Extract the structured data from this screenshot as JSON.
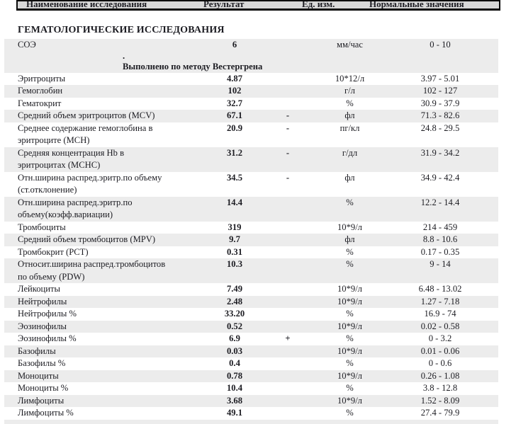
{
  "header": {
    "columns": [
      "Наименование исследования",
      "Результат",
      "Ед. изм.",
      "Нормальные значения"
    ]
  },
  "section": {
    "title": "ГЕМАТОЛОГИЧЕСКИЕ ИССЛЕДОВАНИЯ"
  },
  "soe_block": {
    "name": "СОЭ",
    "result": "6",
    "flag": "",
    "units": "мм/час",
    "range": "0 - 10",
    "dot": ".",
    "method_note": "Выполнено по методу Вестергрена"
  },
  "rows": [
    {
      "name": "Эритроциты",
      "result": "4.87",
      "flag": "",
      "units": "10*12/л",
      "range": "3.97 - 5.01"
    },
    {
      "name": "Гемоглобин",
      "result": "102",
      "flag": "",
      "units": "г/л",
      "range": "102 - 127"
    },
    {
      "name": "Гематокрит",
      "result": "32.7",
      "flag": "",
      "units": "%",
      "range": "30.9 - 37.9"
    },
    {
      "name": "Средний объем эритроцитов (MCV)",
      "result": "67.1",
      "flag": "-",
      "units": "фл",
      "range": "71.3 - 82.6"
    },
    {
      "name": "Среднее содержание гемоглобина в\nэритроците (MCH)",
      "result": "20.9",
      "flag": "-",
      "units": "пг/кл",
      "range": "24.8 - 29.5"
    },
    {
      "name": "Средняя концентрация Hb в\nэритроцитах (MCHC)",
      "result": "31.2",
      "flag": "-",
      "units": "г/дл",
      "range": "31.9 - 34.2"
    },
    {
      "name": "Отн.ширина распред.эритр.по объему\n(ст.отклонение)",
      "result": "34.5",
      "flag": "-",
      "units": "фл",
      "range": "34.9 - 42.4"
    },
    {
      "name": "Отн.ширина распред.эритр.по\nобъему(коэфф.вариации)",
      "result": "14.4",
      "flag": "",
      "units": "%",
      "range": "12.2 - 14.4"
    },
    {
      "name": "Тромбоциты",
      "result": "319",
      "flag": "",
      "units": "10*9/л",
      "range": "214 - 459"
    },
    {
      "name": "Средний объем тромбоцитов (MPV)",
      "result": "9.7",
      "flag": "",
      "units": "фл",
      "range": "8.8 - 10.6"
    },
    {
      "name": "Тромбокрит (PCT)",
      "result": "0.31",
      "flag": "",
      "units": "%",
      "range": "0.17 - 0.35"
    },
    {
      "name": "Относит.ширина распред.тромбоцитов\nпо объему (PDW)",
      "result": "10.3",
      "flag": "",
      "units": "%",
      "range": "9 - 14"
    },
    {
      "name": "Лейкоциты",
      "result": "7.49",
      "flag": "",
      "units": "10*9/л",
      "range": "6.48 - 13.02"
    },
    {
      "name": "Нейтрофилы",
      "result": "2.48",
      "flag": "",
      "units": "10*9/л",
      "range": "1.27 - 7.18"
    },
    {
      "name": "Нейтрофилы %",
      "result": "33.20",
      "flag": "",
      "units": "%",
      "range": "16.9 - 74"
    },
    {
      "name": "Эозинофилы",
      "result": "0.52",
      "flag": "",
      "units": "10*9/л",
      "range": "0.02 - 0.58"
    },
    {
      "name": "Эозинофилы %",
      "result": "6.9",
      "flag": "+",
      "units": "%",
      "range": "0 - 3.2"
    },
    {
      "name": "Базофилы",
      "result": "0.03",
      "flag": "",
      "units": "10*9/л",
      "range": "0.01 - 0.06"
    },
    {
      "name": "Базофилы %",
      "result": "0.4",
      "flag": "",
      "units": "%",
      "range": "0 - 0.6"
    },
    {
      "name": "Моноциты",
      "result": "0.78",
      "flag": "",
      "units": "10*9/л",
      "range": "0.26 - 1.08"
    },
    {
      "name": "Моноциты %",
      "result": "10.4",
      "flag": "",
      "units": "%",
      "range": "3.8 - 12.8"
    },
    {
      "name": "Лимфоциты",
      "result": "3.68",
      "flag": "",
      "units": "10*9/л",
      "range": "1.52 - 8.09"
    },
    {
      "name": "Лимфоциты %",
      "result": "49.1",
      "flag": "",
      "units": "%",
      "range": "27.4 - 79.9"
    }
  ],
  "colors": {
    "row_shade": "#ececec",
    "header_bg": "#d8d8d8",
    "border": "#0a0a0a",
    "text": "#1c1c22"
  }
}
